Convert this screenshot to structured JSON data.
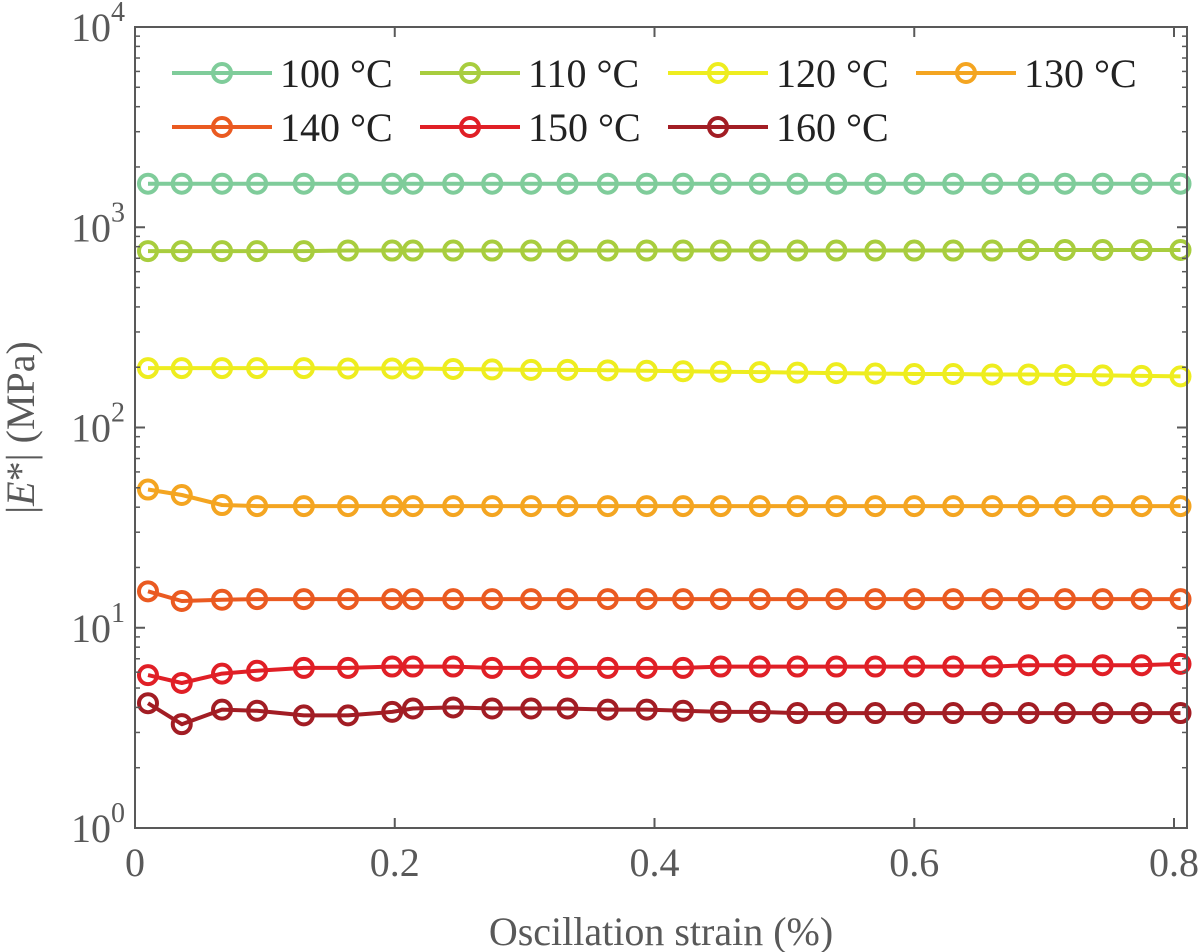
{
  "chart_data": {
    "type": "line",
    "title": "",
    "xlabel": "Oscillation strain (%)",
    "ylabel": "|E*| (MPa)",
    "ylabel_italic_part": "E",
    "ylabel_prefix": "|",
    "ylabel_suffix": "*| (MPa)",
    "xlim": [
      0,
      0.81
    ],
    "ylim": [
      1,
      10000
    ],
    "yscale": "log",
    "grid": false,
    "legend_position": "top",
    "x_ticks": [
      "0",
      "0.2",
      "0.4",
      "0.6",
      "0.8"
    ],
    "x_tick_values": [
      0,
      0.2,
      0.4,
      0.6,
      0.8
    ],
    "y_ticks": [
      {
        "base": "10",
        "exp": "0",
        "value": 1
      },
      {
        "base": "10",
        "exp": "1",
        "value": 10
      },
      {
        "base": "10",
        "exp": "2",
        "value": 100
      },
      {
        "base": "10",
        "exp": "3",
        "value": 1000
      },
      {
        "base": "10",
        "exp": "4",
        "value": 10000
      }
    ],
    "x": [
      0.01,
      0.036,
      0.067,
      0.094,
      0.13,
      0.164,
      0.198,
      0.214,
      0.245,
      0.275,
      0.305,
      0.333,
      0.364,
      0.394,
      0.422,
      0.451,
      0.481,
      0.51,
      0.54,
      0.57,
      0.6,
      0.63,
      0.66,
      0.688,
      0.716,
      0.745,
      0.775,
      0.805
    ],
    "series": [
      {
        "name": "100 °C",
        "color": "#7fcc9a",
        "values": [
          1650,
          1650,
          1650,
          1650,
          1650,
          1650,
          1650,
          1650,
          1650,
          1650,
          1650,
          1650,
          1650,
          1650,
          1650,
          1650,
          1650,
          1650,
          1650,
          1650,
          1650,
          1650,
          1650,
          1650,
          1650,
          1650,
          1650,
          1650
        ]
      },
      {
        "name": "110 °C",
        "color": "#a8cd3e",
        "values": [
          760,
          760,
          760,
          760,
          760,
          765,
          765,
          765,
          765,
          765,
          765,
          765,
          765,
          765,
          765,
          765,
          765,
          765,
          765,
          765,
          765,
          765,
          765,
          770,
          770,
          770,
          770,
          770
        ]
      },
      {
        "name": "120 °C",
        "color": "#eeed1f",
        "values": [
          198,
          198,
          198,
          198,
          198,
          197,
          197,
          197,
          196,
          195,
          194,
          194,
          193,
          192,
          191,
          190,
          189,
          188,
          187,
          186,
          185,
          185,
          184,
          184,
          183,
          182,
          181,
          180
        ]
      },
      {
        "name": "130 °C",
        "color": "#f4a521",
        "values": [
          49,
          46,
          41,
          40.5,
          40.5,
          40.5,
          40.5,
          40.5,
          40.5,
          40.5,
          40.5,
          40.5,
          40.5,
          40.5,
          40.5,
          40.5,
          40.5,
          40.5,
          40.5,
          40.5,
          40.5,
          40.5,
          40.5,
          40.5,
          40.5,
          40.5,
          40.5,
          40.5
        ]
      },
      {
        "name": "140 °C",
        "color": "#ea5a21",
        "values": [
          15.2,
          13.6,
          13.8,
          13.9,
          13.9,
          13.9,
          13.9,
          13.9,
          13.9,
          13.9,
          13.9,
          13.9,
          13.9,
          13.9,
          13.9,
          13.9,
          13.9,
          13.9,
          13.9,
          13.9,
          13.9,
          13.9,
          13.9,
          13.9,
          13.9,
          13.9,
          13.9,
          13.9
        ]
      },
      {
        "name": "150 °C",
        "color": "#e01f26",
        "values": [
          5.8,
          5.3,
          5.9,
          6.1,
          6.3,
          6.3,
          6.4,
          6.4,
          6.4,
          6.3,
          6.3,
          6.3,
          6.3,
          6.3,
          6.3,
          6.4,
          6.4,
          6.4,
          6.4,
          6.4,
          6.4,
          6.4,
          6.4,
          6.5,
          6.5,
          6.5,
          6.5,
          6.6
        ]
      },
      {
        "name": "160 °C",
        "color": "#a21d24",
        "values": [
          4.2,
          3.3,
          3.9,
          3.85,
          3.65,
          3.65,
          3.8,
          3.95,
          4.0,
          3.95,
          3.95,
          3.95,
          3.9,
          3.9,
          3.85,
          3.8,
          3.8,
          3.75,
          3.75,
          3.75,
          3.75,
          3.75,
          3.75,
          3.75,
          3.75,
          3.75,
          3.75,
          3.75
        ]
      }
    ]
  }
}
